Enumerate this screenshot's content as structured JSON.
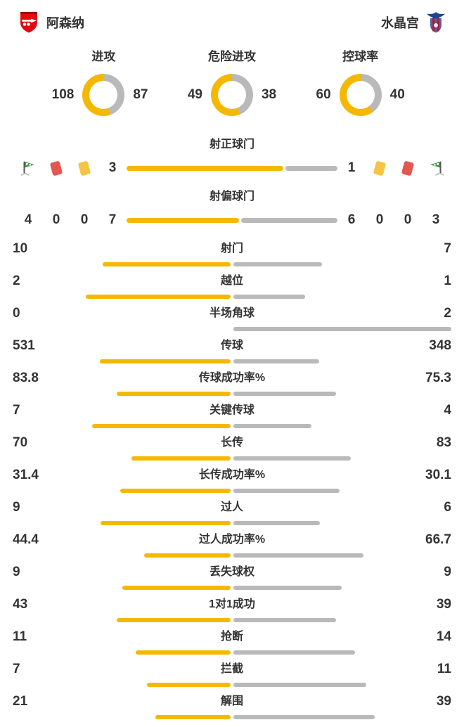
{
  "theme": {
    "home_color": "#F5B800",
    "away_color": "#B9B9B9",
    "text_color": "#333333",
    "red_card_color": "#E25850",
    "yellow_card_color": "#F5C443",
    "corner_flag_color": "#43A047"
  },
  "header": {
    "home_team": "阿森纳",
    "away_team": "水晶宫"
  },
  "donuts": [
    {
      "label": "进攻",
      "home": 108,
      "away": 87
    },
    {
      "label": "危险进攻",
      "home": 49,
      "away": 38
    },
    {
      "label": "控球率",
      "home": 60,
      "away": 40
    }
  ],
  "shot_section": {
    "on_target_label": "射正球门",
    "off_target_label": "射偏球门",
    "home_on_target": 3,
    "away_on_target": 1,
    "home_off_target": 7,
    "away_off_target": 6,
    "home_corners": 4,
    "home_red_cards": 0,
    "home_yellow_cards": 0,
    "away_yellow_cards": 0,
    "away_red_cards": 0,
    "away_corners": 3
  },
  "stats": [
    {
      "label": "射门",
      "home": 10,
      "away": 7
    },
    {
      "label": "越位",
      "home": 2,
      "away": 1
    },
    {
      "label": "半场角球",
      "home": 0,
      "away": 2
    },
    {
      "label": "传球",
      "home": 531,
      "away": 348
    },
    {
      "label": "传球成功率%",
      "home": 83.8,
      "away": 75.3
    },
    {
      "label": "关键传球",
      "home": 7,
      "away": 4
    },
    {
      "label": "长传",
      "home": 70,
      "away": 83
    },
    {
      "label": "长传成功率%",
      "home": 31.4,
      "away": 30.1
    },
    {
      "label": "过人",
      "home": 9,
      "away": 6
    },
    {
      "label": "过人成功率%",
      "home": 44.4,
      "away": 66.7
    },
    {
      "label": "丢失球权",
      "home": 9,
      "away": 9
    },
    {
      "label": "1对1成功",
      "home": 43,
      "away": 39
    },
    {
      "label": "抢断",
      "home": 11,
      "away": 14
    },
    {
      "label": "拦截",
      "home": 7,
      "away": 11
    },
    {
      "label": "解围",
      "home": 21,
      "away": 39
    }
  ],
  "chart_data": [
    {
      "type": "pie",
      "title": "进攻",
      "categories": [
        "阿森纳",
        "水晶宫"
      ],
      "values": [
        108,
        87
      ],
      "colors": [
        "#F5B800",
        "#B9B9B9"
      ]
    },
    {
      "type": "pie",
      "title": "危险进攻",
      "categories": [
        "阿森纳",
        "水晶宫"
      ],
      "values": [
        49,
        38
      ],
      "colors": [
        "#F5B800",
        "#B9B9B9"
      ]
    },
    {
      "type": "pie",
      "title": "控球率",
      "categories": [
        "阿森纳",
        "水晶宫"
      ],
      "values": [
        60,
        40
      ],
      "colors": [
        "#F5B800",
        "#B9B9B9"
      ]
    },
    {
      "type": "bar",
      "title": "阿森纳 vs 水晶宫 技术统计",
      "legend_position": "top",
      "grid": false,
      "categories": [
        "射正球门",
        "射偏球门",
        "角球",
        "红牌",
        "黄牌",
        "射门",
        "越位",
        "半场角球",
        "传球",
        "传球成功率%",
        "关键传球",
        "长传",
        "长传成功率%",
        "过人",
        "过人成功率%",
        "丢失球权",
        "1对1成功",
        "抢断",
        "拦截",
        "解围"
      ],
      "series": [
        {
          "name": "阿森纳",
          "values": [
            3,
            7,
            4,
            0,
            0,
            10,
            2,
            0,
            531,
            83.8,
            7,
            70,
            31.4,
            9,
            44.4,
            9,
            43,
            11,
            7,
            21
          ]
        },
        {
          "name": "水晶宫",
          "values": [
            1,
            6,
            3,
            0,
            0,
            7,
            1,
            2,
            348,
            75.3,
            4,
            83,
            30.1,
            6,
            66.7,
            9,
            39,
            14,
            11,
            39
          ]
        }
      ]
    }
  ]
}
